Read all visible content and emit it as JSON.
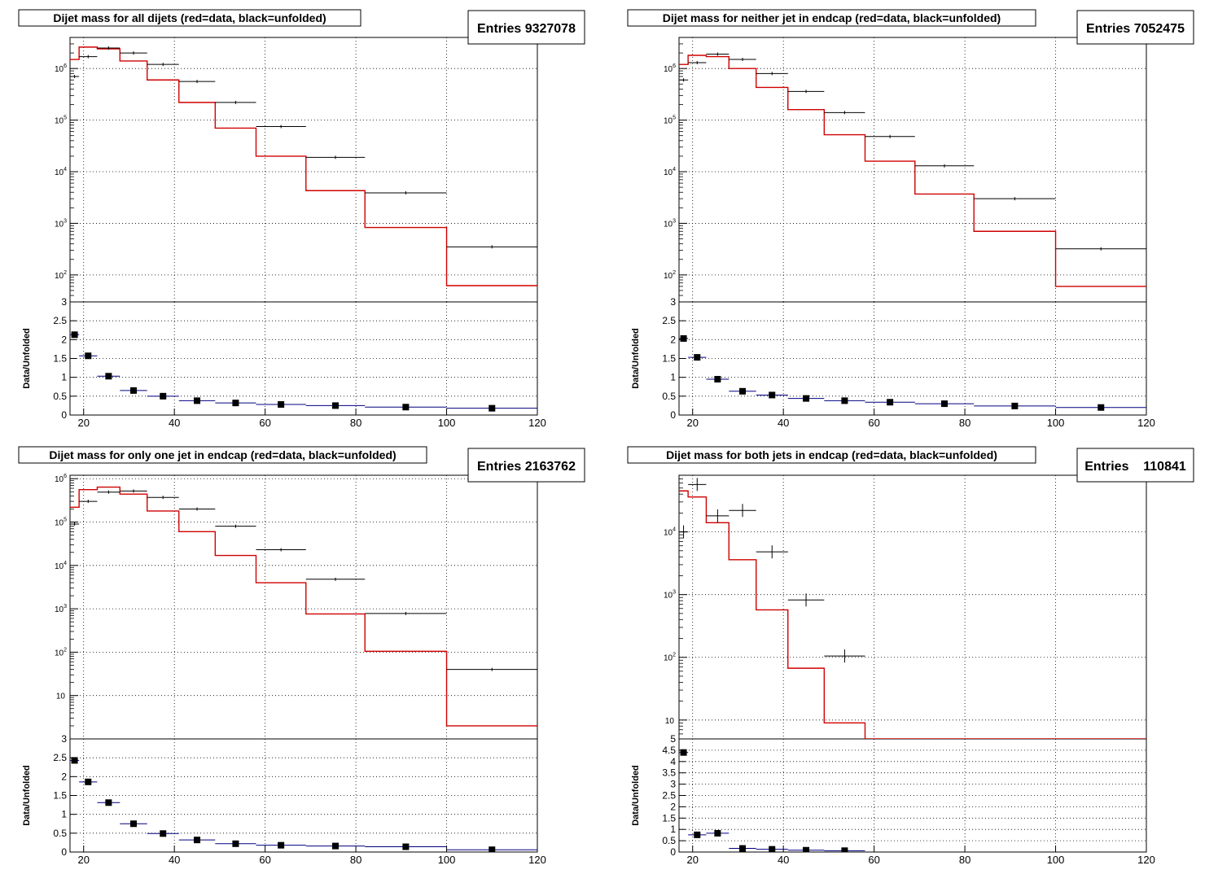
{
  "colors": {
    "data": "#d00000",
    "unfolded": "#000000",
    "ratio_line": "#000080",
    "grid": "#000000",
    "frame": "#000000"
  },
  "bin_edges": [
    17,
    19,
    23,
    28,
    34,
    41,
    49,
    58,
    69,
    82,
    100,
    120
  ],
  "chart_data": [
    {
      "type": "line",
      "title": "Dijet mass for all dijets (red=data, black=unfolded)",
      "stats": "Entries 9327078",
      "xlim": [
        17,
        120
      ],
      "xticks": [
        "20",
        "40",
        "60",
        "80",
        "100",
        "120"
      ],
      "top": {
        "yscale": "log",
        "ylim": [
          30,
          4000000
        ],
        "yticks": [
          {
            "v": 100,
            "l": "10",
            "e": "2"
          },
          {
            "v": 1000,
            "l": "10",
            "e": "3"
          },
          {
            "v": 10000,
            "l": "10",
            "e": "4"
          },
          {
            "v": 100000,
            "l": "10",
            "e": "5"
          },
          {
            "v": 1000000,
            "l": "10",
            "e": "6"
          }
        ],
        "series": [
          {
            "name": "data",
            "values": [
              1500000,
              2600000,
              2400000,
              1400000,
              600000,
              220000,
              70000,
              20000,
              4300,
              830,
              62
            ]
          },
          {
            "name": "unfolded",
            "values": [
              700000,
              1700000,
              2500000,
              2000000,
              1200000,
              560000,
              220000,
              75000,
              19000,
              3900,
              350
            ]
          }
        ]
      },
      "bottom": {
        "ylabel": "Data/Unfolded",
        "ylim": [
          0,
          3
        ],
        "yticks": [
          "0",
          "0.5",
          "1",
          "1.5",
          "2",
          "2.5",
          "3"
        ],
        "values": [
          2.13,
          1.57,
          1.03,
          0.65,
          0.5,
          0.38,
          0.32,
          0.28,
          0.25,
          0.21,
          0.18
        ]
      }
    },
    {
      "type": "line",
      "title": "Dijet mass for neither jet in endcap (red=data, black=unfolded)",
      "stats": "Entries 7052475",
      "xlim": [
        17,
        120
      ],
      "xticks": [
        "20",
        "40",
        "60",
        "80",
        "100",
        "120"
      ],
      "top": {
        "yscale": "log",
        "ylim": [
          30,
          4000000
        ],
        "yticks": [
          {
            "v": 100,
            "l": "10",
            "e": "2"
          },
          {
            "v": 1000,
            "l": "10",
            "e": "3"
          },
          {
            "v": 10000,
            "l": "10",
            "e": "4"
          },
          {
            "v": 100000,
            "l": "10",
            "e": "5"
          },
          {
            "v": 1000000,
            "l": "10",
            "e": "6"
          }
        ],
        "series": [
          {
            "name": "data",
            "values": [
              1200000,
              1800000,
              1700000,
              1000000,
              430000,
              160000,
              52000,
              16000,
              3700,
              700,
              60
            ]
          },
          {
            "name": "unfolded",
            "values": [
              600000,
              1300000,
              1900000,
              1500000,
              800000,
              360000,
              140000,
              48000,
              13000,
              3000,
              320
            ]
          }
        ]
      },
      "bottom": {
        "ylabel": "Data/Unfolded",
        "ylim": [
          0,
          3
        ],
        "yticks": [
          "0",
          "0.5",
          "1",
          "1.5",
          "2",
          "2.5",
          "3"
        ],
        "values": [
          2.03,
          1.53,
          0.95,
          0.63,
          0.53,
          0.44,
          0.38,
          0.34,
          0.3,
          0.24,
          0.2
        ]
      }
    },
    {
      "type": "line",
      "title": "Dijet mass for only one jet in endcap (red=data, black=unfolded)",
      "stats": "Entries 2163762",
      "xlim": [
        17,
        120
      ],
      "xticks": [
        "20",
        "40",
        "60",
        "80",
        "100",
        "120"
      ],
      "top": {
        "yscale": "log",
        "ylim": [
          1,
          1200000
        ],
        "yticks": [
          {
            "v": 10,
            "l": "10",
            "e": ""
          },
          {
            "v": 100,
            "l": "10",
            "e": "2"
          },
          {
            "v": 1000,
            "l": "10",
            "e": "3"
          },
          {
            "v": 10000,
            "l": "10",
            "e": "4"
          },
          {
            "v": 100000,
            "l": "10",
            "e": "5"
          },
          {
            "v": 1000000,
            "l": "10",
            "e": "6"
          }
        ],
        "series": [
          {
            "name": "data",
            "values": [
              220000,
              560000,
              640000,
              440000,
              180000,
              60000,
              17000,
              4000,
              760,
              105,
              2
            ]
          },
          {
            "name": "unfolded",
            "values": [
              90000,
              300000,
              490000,
              520000,
              370000,
              200000,
              80000,
              23000,
              4800,
              780,
              40
            ]
          }
        ]
      },
      "bottom": {
        "ylabel": "Data/Unfolded",
        "ylim": [
          0,
          3
        ],
        "yticks": [
          "0",
          "0.5",
          "1",
          "1.5",
          "2",
          "2.5",
          "3"
        ],
        "values": [
          2.43,
          1.86,
          1.31,
          0.75,
          0.49,
          0.32,
          0.22,
          0.18,
          0.16,
          0.14,
          0.06
        ]
      }
    },
    {
      "type": "line",
      "title": "Dijet mass for both jets in endcap (red=data, black=unfolded)",
      "stats": "Entries    110841",
      "xlim": [
        17,
        120
      ],
      "xticks": [
        "20",
        "40",
        "60",
        "80",
        "100",
        "120"
      ],
      "top": {
        "yscale": "log",
        "ylim": [
          5,
          80000
        ],
        "yticks": [
          {
            "v": 10,
            "l": "10",
            "e": ""
          },
          {
            "v": 100,
            "l": "10",
            "e": "2"
          },
          {
            "v": 1000,
            "l": "10",
            "e": "3"
          },
          {
            "v": 10000,
            "l": "10",
            "e": "4"
          }
        ],
        "bottom_label": "5",
        "series": [
          {
            "name": "data",
            "values": [
              45000,
              36000,
              14000,
              3600,
              570,
              67,
              9,
              0.5,
              0.5,
              0.5,
              0.5
            ]
          },
          {
            "name": "unfolded",
            "values": [
              10000,
              57000,
              18000,
              22000,
              4800,
              820,
              105,
              null,
              null,
              null,
              null
            ]
          }
        ]
      },
      "bottom": {
        "ylabel": "Data/Unfolded",
        "ylim": [
          0,
          5
        ],
        "yticks": [
          "0",
          "0.5",
          "1",
          "1.5",
          "2",
          "2.5",
          "3",
          "3.5",
          "4",
          "4.5"
        ],
        "values": [
          4.4,
          0.76,
          0.83,
          0.16,
          0.12,
          0.08,
          0.06,
          null,
          null,
          null,
          null
        ]
      }
    }
  ]
}
